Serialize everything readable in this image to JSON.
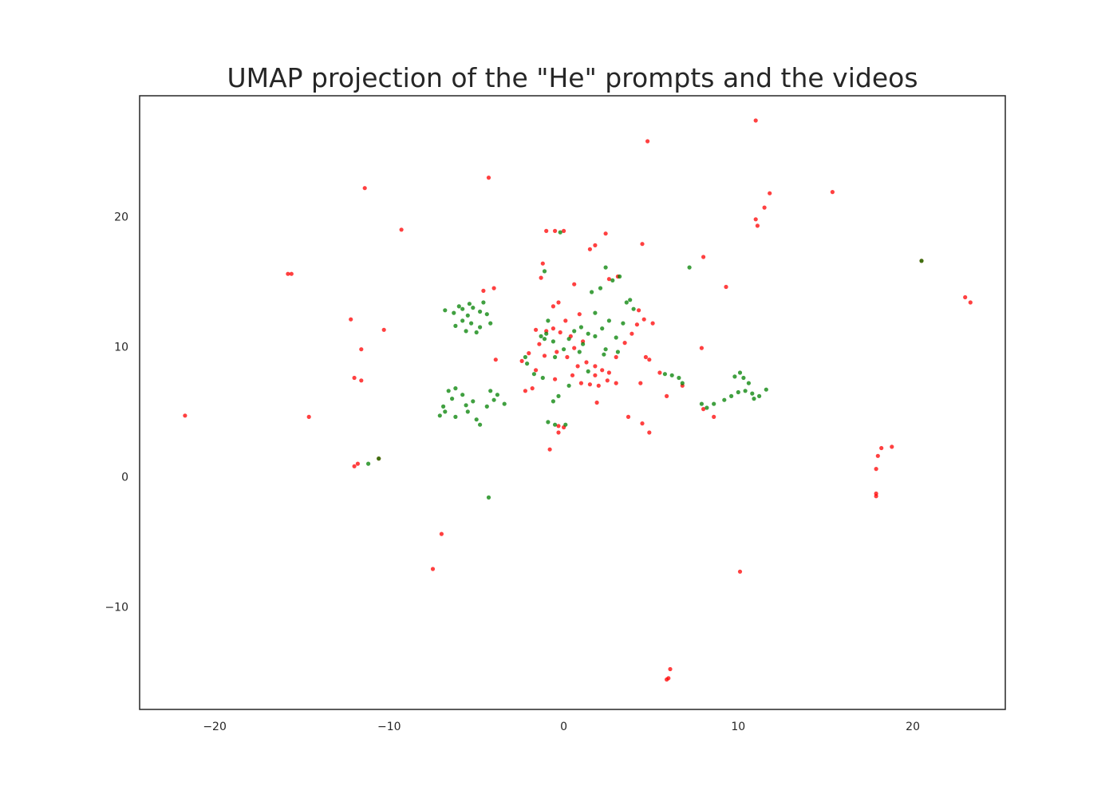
{
  "chart_data": {
    "type": "scatter",
    "title": "UMAP projection of the \"He\" prompts and the videos",
    "xlabel": "",
    "ylabel": "",
    "xlim": [
      -24.3,
      25.3
    ],
    "ylim": [
      -17.9,
      29.3
    ],
    "x_ticks": [
      -20,
      -10,
      0,
      10,
      20
    ],
    "y_ticks": [
      -10,
      0,
      10,
      20
    ],
    "x_tick_labels": [
      "−20",
      "−10",
      "0",
      "10",
      "20"
    ],
    "y_tick_labels": [
      "−10",
      "0",
      "10",
      "20"
    ],
    "grid": false,
    "legend": "none",
    "colors": {
      "videos": "#008000",
      "prompts": "#ff0000",
      "axes": "#262626"
    },
    "series": [
      {
        "color": "#ff0000",
        "points": [
          [
            11.0,
            27.4
          ],
          [
            4.8,
            25.8
          ],
          [
            -11.4,
            22.2
          ],
          [
            -4.3,
            23.0
          ],
          [
            -9.3,
            19.0
          ],
          [
            15.4,
            21.9
          ],
          [
            11.8,
            21.8
          ],
          [
            11.5,
            20.7
          ],
          [
            11.0,
            19.8
          ],
          [
            11.1,
            19.3
          ],
          [
            -1.0,
            18.9
          ],
          [
            -0.5,
            18.9
          ],
          [
            0.0,
            18.9
          ],
          [
            2.4,
            18.7
          ],
          [
            1.8,
            17.8
          ],
          [
            1.5,
            17.5
          ],
          [
            4.5,
            17.9
          ],
          [
            8.0,
            16.9
          ],
          [
            20.5,
            16.6
          ],
          [
            -15.6,
            15.6
          ],
          [
            -15.8,
            15.6
          ],
          [
            -1.2,
            16.4
          ],
          [
            9.3,
            14.6
          ],
          [
            -4.0,
            14.5
          ],
          [
            -4.6,
            14.3
          ],
          [
            0.6,
            14.8
          ],
          [
            23.3,
            13.4
          ],
          [
            23.0,
            13.8
          ],
          [
            -12.2,
            12.1
          ],
          [
            -10.3,
            11.3
          ],
          [
            -11.6,
            9.8
          ],
          [
            -3.9,
            9.0
          ],
          [
            -21.7,
            4.7
          ],
          [
            -14.6,
            4.6
          ],
          [
            -12.0,
            7.6
          ],
          [
            -11.6,
            7.4
          ],
          [
            -12.0,
            0.8
          ],
          [
            -11.8,
            1.0
          ],
          [
            -10.6,
            1.4
          ],
          [
            18.8,
            2.3
          ],
          [
            18.2,
            2.2
          ],
          [
            18.0,
            1.6
          ],
          [
            17.9,
            0.6
          ],
          [
            17.9,
            -1.3
          ],
          [
            17.9,
            -1.5
          ],
          [
            -7.0,
            -4.4
          ],
          [
            -7.5,
            -7.1
          ],
          [
            10.1,
            -7.3
          ],
          [
            6.1,
            -14.8
          ],
          [
            6.0,
            -15.5
          ],
          [
            5.9,
            -15.6
          ],
          [
            -0.8,
            2.1
          ],
          [
            -0.3,
            3.4
          ],
          [
            -0.3,
            3.9
          ],
          [
            0.0,
            3.8
          ],
          [
            4.9,
            3.4
          ],
          [
            4.5,
            4.1
          ],
          [
            3.7,
            4.6
          ],
          [
            5.9,
            6.2
          ],
          [
            8.6,
            4.6
          ],
          [
            8.0,
            5.2
          ],
          [
            7.9,
            9.9
          ],
          [
            4.7,
            9.2
          ],
          [
            4.9,
            9.0
          ],
          [
            5.5,
            8.0
          ],
          [
            6.8,
            7.0
          ],
          [
            4.4,
            7.2
          ],
          [
            1.9,
            5.7
          ],
          [
            -2.2,
            6.6
          ],
          [
            -1.8,
            6.8
          ],
          [
            -0.5,
            7.5
          ],
          [
            0.5,
            7.8
          ],
          [
            1.0,
            7.2
          ],
          [
            1.5,
            7.1
          ],
          [
            2.0,
            7.0
          ],
          [
            2.5,
            7.4
          ],
          [
            3.0,
            7.2
          ],
          [
            1.8,
            7.8
          ],
          [
            2.2,
            8.2
          ],
          [
            0.8,
            8.5
          ],
          [
            1.3,
            8.8
          ],
          [
            0.2,
            9.2
          ],
          [
            -0.4,
            9.6
          ],
          [
            0.6,
            9.9
          ],
          [
            1.1,
            10.4
          ],
          [
            -1.4,
            10.2
          ],
          [
            -1.0,
            11.2
          ],
          [
            -0.6,
            11.4
          ],
          [
            -0.2,
            11.1
          ],
          [
            0.4,
            10.8
          ],
          [
            -2.0,
            9.5
          ],
          [
            -2.4,
            8.9
          ],
          [
            -1.6,
            8.2
          ],
          [
            0.9,
            12.5
          ],
          [
            -0.3,
            13.4
          ],
          [
            -0.6,
            13.1
          ],
          [
            0.1,
            12.0
          ],
          [
            3.0,
            9.2
          ],
          [
            3.5,
            10.3
          ],
          [
            3.9,
            11.0
          ],
          [
            4.2,
            11.7
          ],
          [
            4.6,
            12.1
          ],
          [
            5.1,
            11.8
          ],
          [
            4.3,
            12.8
          ],
          [
            3.1,
            15.4
          ],
          [
            2.6,
            15.2
          ],
          [
            -1.3,
            15.3
          ],
          [
            -1.6,
            11.3
          ],
          [
            1.8,
            8.5
          ],
          [
            2.6,
            8.0
          ],
          [
            -1.1,
            9.3
          ]
        ]
      },
      {
        "color": "#008000",
        "points": [
          [
            7.2,
            16.1
          ],
          [
            2.4,
            16.1
          ],
          [
            -6.8,
            12.8
          ],
          [
            -6.3,
            12.6
          ],
          [
            -5.8,
            12.9
          ],
          [
            -5.5,
            12.4
          ],
          [
            -5.2,
            13.0
          ],
          [
            -4.8,
            12.7
          ],
          [
            -4.4,
            12.5
          ],
          [
            -4.2,
            11.8
          ],
          [
            -4.8,
            11.5
          ],
          [
            -5.3,
            11.8
          ],
          [
            -5.8,
            12.0
          ],
          [
            -6.2,
            11.6
          ],
          [
            -5.6,
            11.2
          ],
          [
            -5.0,
            11.1
          ],
          [
            -6.0,
            13.1
          ],
          [
            -5.4,
            13.3
          ],
          [
            -4.6,
            13.4
          ],
          [
            -6.6,
            6.6
          ],
          [
            -6.2,
            6.8
          ],
          [
            -5.8,
            6.3
          ],
          [
            -6.4,
            6.0
          ],
          [
            -7.1,
            4.7
          ],
          [
            -6.8,
            5.0
          ],
          [
            -6.2,
            4.6
          ],
          [
            -5.5,
            5.0
          ],
          [
            -5.0,
            4.4
          ],
          [
            -4.8,
            4.0
          ],
          [
            -4.4,
            5.4
          ],
          [
            -4.0,
            5.9
          ],
          [
            -3.8,
            6.3
          ],
          [
            -4.2,
            6.6
          ],
          [
            -5.2,
            5.8
          ],
          [
            -5.6,
            5.5
          ],
          [
            -6.9,
            5.4
          ],
          [
            -3.4,
            5.6
          ],
          [
            -0.9,
            4.2
          ],
          [
            -0.5,
            4.0
          ],
          [
            0.1,
            4.0
          ],
          [
            -0.6,
            5.8
          ],
          [
            -0.3,
            6.2
          ],
          [
            -1.2,
            7.6
          ],
          [
            -1.7,
            7.9
          ],
          [
            -2.1,
            8.7
          ],
          [
            -2.2,
            9.2
          ],
          [
            -1.1,
            10.6
          ],
          [
            -1.0,
            11.0
          ],
          [
            -0.6,
            10.4
          ],
          [
            0.0,
            9.8
          ],
          [
            0.3,
            10.6
          ],
          [
            0.6,
            11.2
          ],
          [
            1.0,
            11.5
          ],
          [
            1.4,
            11.0
          ],
          [
            1.8,
            10.8
          ],
          [
            2.2,
            11.4
          ],
          [
            2.6,
            12.0
          ],
          [
            1.8,
            12.6
          ],
          [
            1.6,
            14.2
          ],
          [
            2.1,
            14.5
          ],
          [
            2.8,
            15.1
          ],
          [
            3.2,
            15.4
          ],
          [
            3.6,
            13.4
          ],
          [
            3.8,
            13.6
          ],
          [
            4.0,
            12.9
          ],
          [
            3.4,
            11.8
          ],
          [
            3.0,
            10.7
          ],
          [
            3.1,
            9.6
          ],
          [
            2.4,
            9.8
          ],
          [
            -0.9,
            12.0
          ],
          [
            -1.3,
            10.8
          ],
          [
            -0.5,
            9.2
          ],
          [
            0.9,
            9.6
          ],
          [
            5.8,
            7.9
          ],
          [
            6.2,
            7.8
          ],
          [
            6.6,
            7.6
          ],
          [
            6.8,
            7.2
          ],
          [
            7.9,
            5.6
          ],
          [
            8.2,
            5.3
          ],
          [
            8.6,
            5.6
          ],
          [
            9.2,
            5.9
          ],
          [
            9.6,
            6.2
          ],
          [
            10.0,
            6.5
          ],
          [
            10.4,
            6.6
          ],
          [
            10.8,
            6.4
          ],
          [
            11.2,
            6.2
          ],
          [
            11.6,
            6.7
          ],
          [
            10.1,
            8.0
          ],
          [
            9.8,
            7.7
          ],
          [
            10.3,
            7.6
          ],
          [
            10.6,
            7.2
          ],
          [
            10.9,
            6.0
          ],
          [
            -4.3,
            -1.6
          ],
          [
            -10.6,
            1.4
          ],
          [
            -11.2,
            1.0
          ],
          [
            20.5,
            16.6
          ],
          [
            -0.2,
            18.8
          ],
          [
            -1.1,
            15.8
          ],
          [
            2.3,
            9.4
          ],
          [
            1.1,
            10.2
          ],
          [
            0.3,
            7.0
          ],
          [
            1.4,
            8.1
          ]
        ]
      }
    ]
  }
}
